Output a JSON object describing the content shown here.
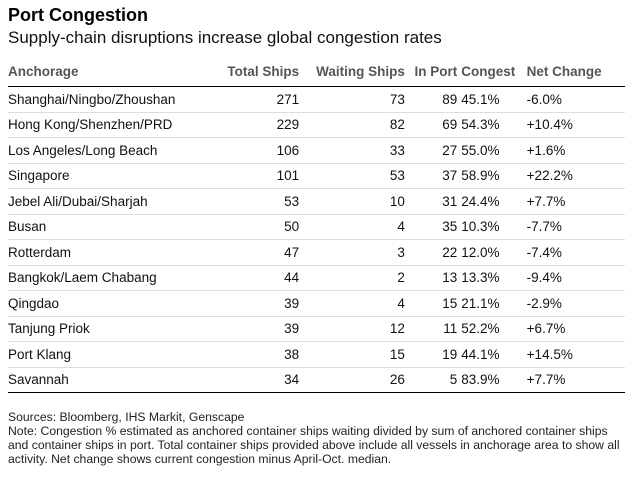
{
  "title": "Port Congestion",
  "subtitle": "Supply-chain disruptions increase global congestion rates",
  "chart_data": {
    "type": "table",
    "columns": [
      "Anchorage",
      "Total Ships",
      "Waiting Ships",
      "In Port",
      "Congest",
      "Net Change"
    ],
    "rows": [
      [
        "Shanghai/Ningbo/Zhoushan",
        "271",
        "73",
        "89",
        "45.1%",
        "-6.0%"
      ],
      [
        "Hong Kong/Shenzhen/PRD",
        "229",
        "82",
        "69",
        "54.3%",
        "+10.4%"
      ],
      [
        "Los Angeles/Long Beach",
        "106",
        "33",
        "27",
        "55.0%",
        "+1.6%"
      ],
      [
        "Singapore",
        "101",
        "53",
        "37",
        "58.9%",
        "+22.2%"
      ],
      [
        "Jebel Ali/Dubai/Sharjah",
        "53",
        "10",
        "31",
        "24.4%",
        "+7.7%"
      ],
      [
        "Busan",
        "50",
        "4",
        "35",
        "10.3%",
        "-7.7%"
      ],
      [
        "Rotterdam",
        "47",
        "3",
        "22",
        "12.0%",
        "-7.4%"
      ],
      [
        "Bangkok/Laem Chabang",
        "44",
        "2",
        "13",
        "13.3%",
        "-9.4%"
      ],
      [
        "Qingdao",
        "39",
        "4",
        "15",
        "21.1%",
        "-2.9%"
      ],
      [
        "Tanjung Priok",
        "39",
        "12",
        "11",
        "52.2%",
        "+6.7%"
      ],
      [
        "Port Klang",
        "38",
        "15",
        "19",
        "44.1%",
        "+14.5%"
      ],
      [
        "Savannah",
        "34",
        "26",
        "5",
        "83.9%",
        "+7.7%"
      ]
    ]
  },
  "footer": {
    "sources": "Sources: Bloomberg, IHS Markit, Genscape",
    "note": "Note: Congestion % estimated as anchored container ships waiting divided by sum of anchored container ships and container ships in port. Total container ships provided above include all vessels in anchorage area to show all activity. Net change shows current congestion minus April-Oct. median."
  }
}
